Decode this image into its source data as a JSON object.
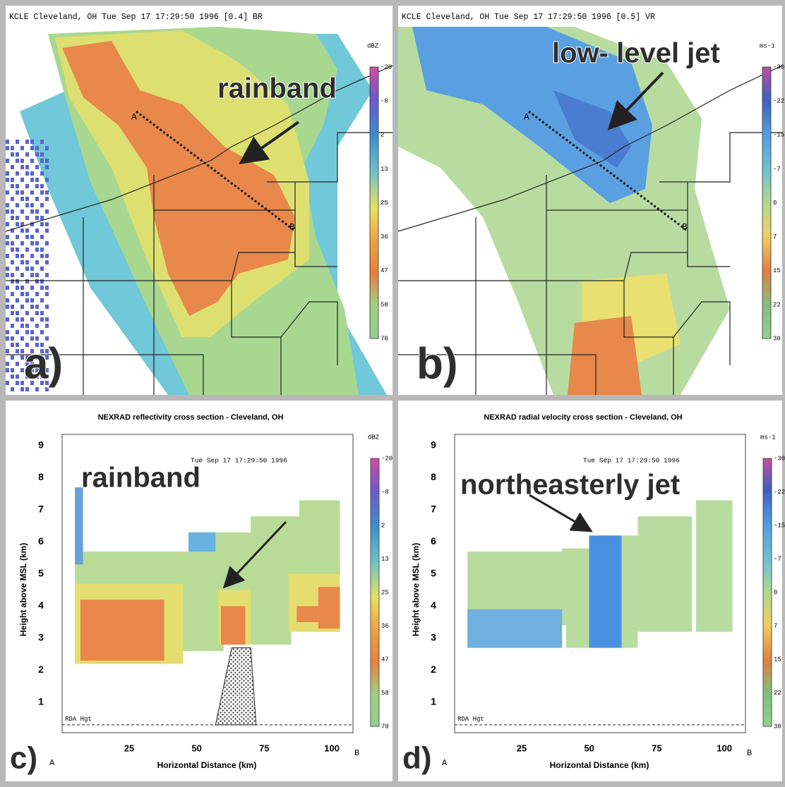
{
  "panels": [
    {
      "header": "KCLE Cleveland, OH Tue Sep 17 17:29:50 1996 [0.4] BR",
      "unit": "dBZ",
      "scale": [
        -20,
        -8,
        2,
        13,
        25,
        36,
        47,
        58,
        70
      ],
      "annotation": "rainband",
      "point_a": "A",
      "point_b": "B",
      "label": "a)"
    },
    {
      "header": "KCLE Cleveland, OH Tue Sep 17 17:29:50 1996 [0.5] VR",
      "unit": "ms-1",
      "scale": [
        -30,
        -22,
        -15,
        -7,
        0,
        7,
        15,
        22,
        30
      ],
      "annotation": "low- level jet",
      "point_a": "A",
      "point_b": "B",
      "label": "b)"
    },
    {
      "title": "NEXRAD reflectivity cross section - Cleveland, OH",
      "timestamp": "Tue Sep 17 17:29:50 1996",
      "unit": "dBZ",
      "scale": [
        -20,
        -8,
        2,
        13,
        25,
        36,
        47,
        58,
        70
      ],
      "y_label": "Height above MSL (km)",
      "x_label": "Horizontal Distance (km)",
      "yticks": [
        1,
        2,
        3,
        4,
        5,
        6,
        7,
        8,
        9
      ],
      "xticks": [
        25,
        50,
        75,
        100
      ],
      "baseline": "RDA Hgt",
      "annotation": "rainband",
      "point_a": "A",
      "point_b": "B",
      "label": "c)"
    },
    {
      "title": "NEXRAD radial velocity cross section - Cleveland, OH",
      "timestamp": "Tue Sep 17 17:29:50 1996",
      "unit": "ms-1",
      "scale": [
        -30,
        -22,
        -15,
        -7,
        0,
        7,
        15,
        22,
        30
      ],
      "y_label": "Height above MSL (km)",
      "x_label": "Horizontal Distance (km)",
      "yticks": [
        1,
        2,
        3,
        4,
        5,
        6,
        7,
        8,
        9
      ],
      "xticks": [
        25,
        50,
        75,
        100
      ],
      "baseline": "RDA Hgt",
      "annotation": "northeasterly jet",
      "point_a": "A",
      "point_b": "B",
      "label": "d)"
    }
  ]
}
